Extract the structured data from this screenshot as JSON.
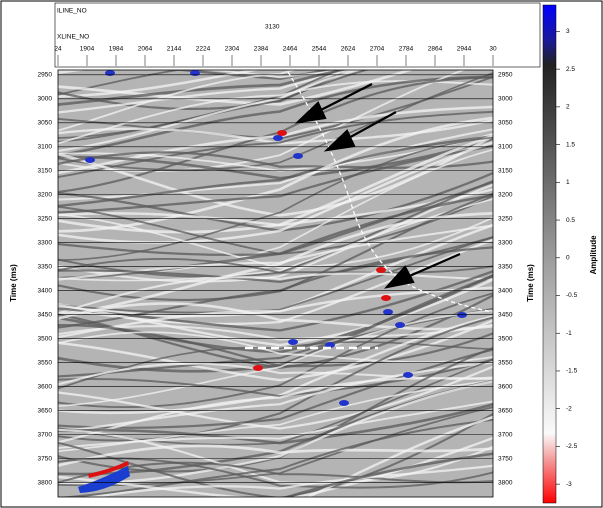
{
  "header": {
    "inline_label": "ILINE_NO",
    "inline_value": "3130",
    "xline_label": "XLINE_NO",
    "xline_ticks": [
      "24",
      "1904",
      "1984",
      "2064",
      "2144",
      "2224",
      "2304",
      "2384",
      "2464",
      "2544",
      "2624",
      "2704",
      "2784",
      "2864",
      "2944",
      "30"
    ]
  },
  "time_axis": {
    "label": "Time (ms)",
    "lim": [
      2940,
      3830
    ],
    "ticks": [
      2950,
      3000,
      3050,
      3100,
      3150,
      3200,
      3250,
      3300,
      3350,
      3400,
      3450,
      3500,
      3550,
      3600,
      3650,
      3700,
      3750,
      3800
    ]
  },
  "colorbar": {
    "label": "Amplitude",
    "lim": [
      -3.25,
      3.35
    ],
    "ticks": [
      3,
      2.5,
      2,
      1.5,
      1,
      0.5,
      0,
      -0.5,
      -1,
      -1.5,
      -2,
      -2.5,
      -3
    ]
  }
}
